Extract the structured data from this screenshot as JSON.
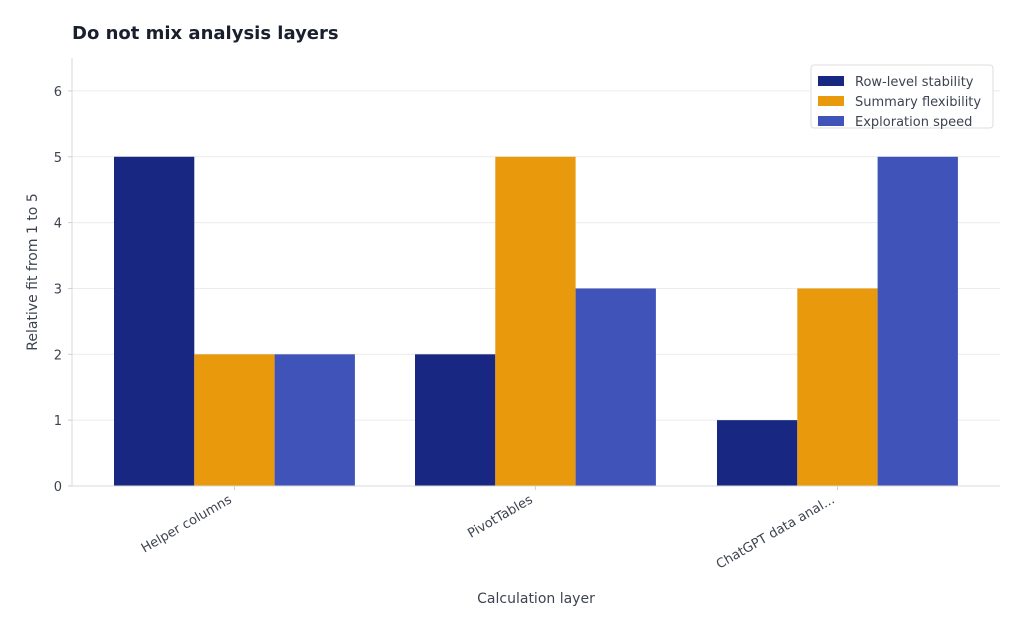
{
  "chart_data": {
    "type": "bar",
    "title": "Do not mix analysis layers",
    "xlabel": "Calculation layer",
    "ylabel": "Relative fit from 1 to 5",
    "categories": [
      "Helper columns",
      "PivotTables",
      "ChatGPT data anal..."
    ],
    "series": [
      {
        "name": "Row-level stability",
        "values": [
          5,
          2,
          1
        ],
        "color": "#182882"
      },
      {
        "name": "Summary flexibility",
        "values": [
          2,
          5,
          3
        ],
        "color": "#e99a0c"
      },
      {
        "name": "Exploration speed",
        "values": [
          2,
          3,
          5
        ],
        "color": "#3f53b9"
      }
    ],
    "ylim": [
      0,
      6.5
    ],
    "yticks": [
      0,
      1,
      2,
      3,
      4,
      5,
      6
    ],
    "grid": true,
    "legend_position": "top-right"
  }
}
